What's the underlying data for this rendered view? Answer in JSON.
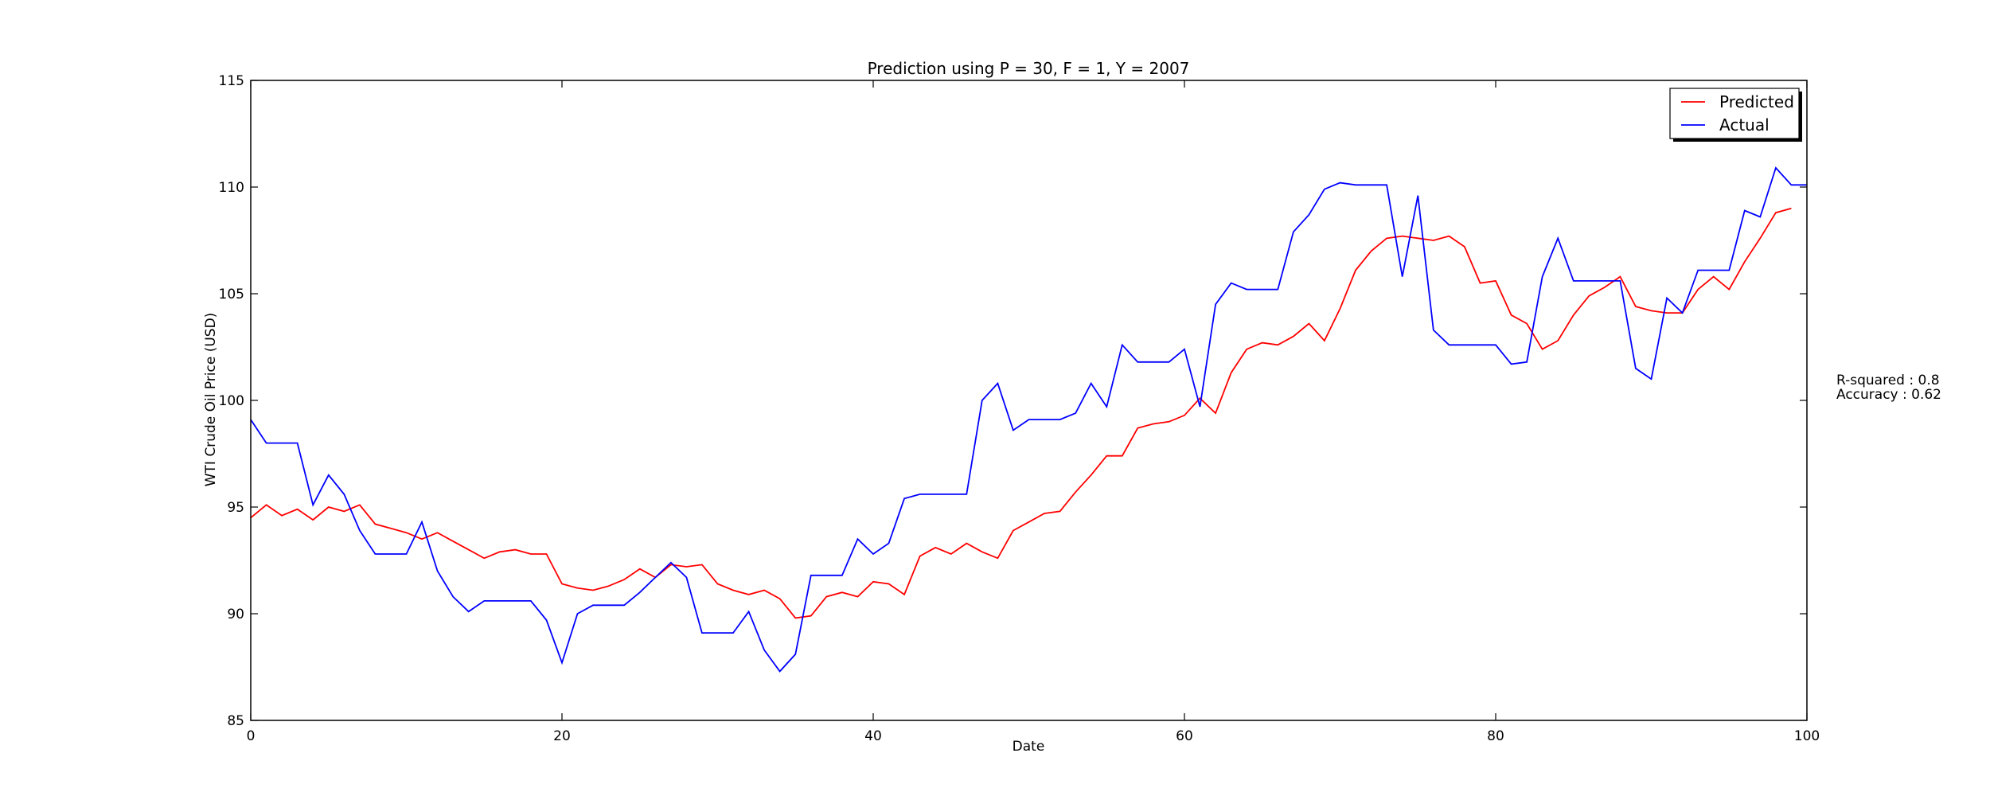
{
  "chart_data": {
    "type": "line",
    "title": "Prediction using P = 30, F = 1, Y = 2007",
    "xlabel": "Date",
    "ylabel": "WTI Crude Oil Price (USD)",
    "xlim": [
      0,
      100
    ],
    "ylim": [
      85,
      115
    ],
    "xticks": [
      0,
      20,
      40,
      60,
      80,
      100
    ],
    "yticks": [
      85,
      90,
      95,
      100,
      105,
      110,
      115
    ],
    "grid": false,
    "legend_position": "top-right",
    "x": [
      0,
      1,
      2,
      3,
      4,
      5,
      6,
      7,
      8,
      9,
      10,
      11,
      12,
      13,
      14,
      15,
      16,
      17,
      18,
      19,
      20,
      21,
      22,
      23,
      24,
      25,
      26,
      27,
      28,
      29,
      30,
      31,
      32,
      33,
      34,
      35,
      36,
      37,
      38,
      39,
      40,
      41,
      42,
      43,
      44,
      45,
      46,
      47,
      48,
      49,
      50,
      51,
      52,
      53,
      54,
      55,
      56,
      57,
      58,
      59,
      60,
      61,
      62,
      63,
      64,
      65,
      66,
      67,
      68,
      69,
      70,
      71,
      72,
      73,
      74,
      75,
      76,
      77,
      78,
      79,
      80,
      81,
      82,
      83,
      84,
      85,
      86,
      87,
      88,
      89,
      90,
      91,
      92,
      93,
      94,
      95,
      96,
      97,
      98,
      99,
      100
    ],
    "series": [
      {
        "name": "Predicted",
        "color": "#ff0000",
        "values": [
          94.5,
          95.1,
          94.6,
          94.9,
          94.4,
          95.0,
          94.8,
          95.1,
          94.2,
          94.0,
          93.8,
          93.5,
          93.8,
          93.4,
          93.0,
          92.6,
          92.9,
          93.0,
          92.8,
          92.8,
          91.4,
          91.2,
          91.1,
          91.3,
          91.6,
          92.1,
          91.7,
          92.3,
          92.2,
          92.3,
          91.4,
          91.1,
          90.9,
          91.1,
          90.7,
          89.8,
          89.9,
          90.8,
          91.0,
          90.8,
          91.5,
          91.4,
          90.9,
          92.7,
          93.1,
          92.8,
          93.3,
          92.9,
          92.6,
          93.9,
          94.3,
          94.7,
          94.8,
          95.7,
          96.5,
          97.4,
          97.4,
          98.7,
          98.9,
          99.0,
          99.3,
          100.1,
          99.4,
          101.3,
          102.4,
          102.7,
          102.6,
          103.0,
          103.6,
          102.8,
          104.3,
          106.1,
          107.0,
          107.6,
          107.7,
          107.6,
          107.5,
          107.7,
          107.2,
          105.5,
          105.6,
          104.0,
          103.6,
          102.4,
          102.8,
          104.0,
          104.9,
          105.3,
          105.8,
          104.4,
          104.2,
          104.1,
          104.1,
          105.2,
          105.8,
          105.2,
          106.5,
          107.6,
          108.8,
          109.0,
          null
        ]
      },
      {
        "name": "Actual",
        "color": "#0000ff",
        "values": [
          99.1,
          98.0,
          98.0,
          98.0,
          95.1,
          96.5,
          95.6,
          93.9,
          92.8,
          92.8,
          92.8,
          94.3,
          92.0,
          90.8,
          90.1,
          90.6,
          90.6,
          90.6,
          90.6,
          89.7,
          87.7,
          90.0,
          90.4,
          90.4,
          90.4,
          91.0,
          91.7,
          92.4,
          91.7,
          89.1,
          89.1,
          89.1,
          90.1,
          88.3,
          87.3,
          88.1,
          91.8,
          91.8,
          91.8,
          93.5,
          92.8,
          93.3,
          95.4,
          95.6,
          95.6,
          95.6,
          95.6,
          100.0,
          100.8,
          98.6,
          99.1,
          99.1,
          99.1,
          99.4,
          100.8,
          99.7,
          102.6,
          101.8,
          101.8,
          101.8,
          102.4,
          99.7,
          104.5,
          105.5,
          105.2,
          105.2,
          105.2,
          107.9,
          108.7,
          109.9,
          110.2,
          110.1,
          110.1,
          110.1,
          105.8,
          109.6,
          103.3,
          102.6,
          102.6,
          102.6,
          102.6,
          101.7,
          101.8,
          105.8,
          107.6,
          105.6,
          105.6,
          105.6,
          105.6,
          101.5,
          101.0,
          104.8,
          104.1,
          106.1,
          106.1,
          106.1,
          108.9,
          108.6,
          110.9,
          110.1,
          110.1
        ]
      }
    ]
  },
  "annotations": {
    "r_squared": "R-squared : 0.8",
    "accuracy": "Accuracy : 0.62"
  }
}
